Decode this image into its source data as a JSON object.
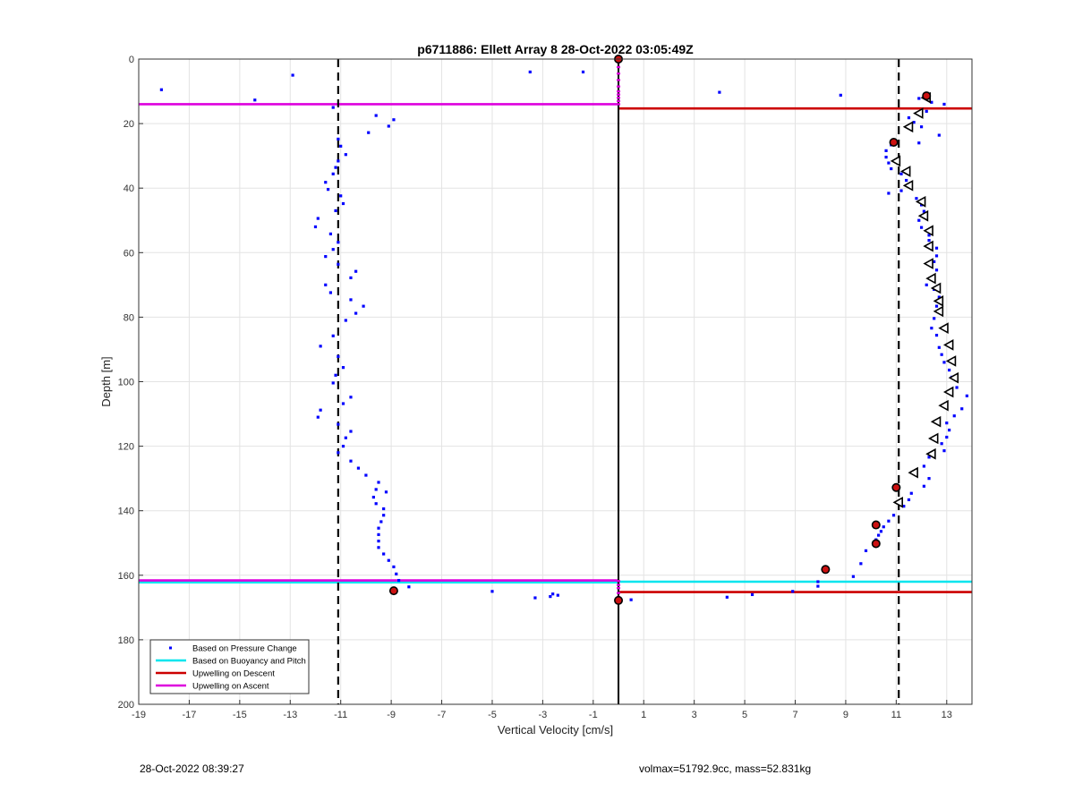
{
  "chart_data": {
    "type": "scatter",
    "title": "p6711886: Ellett Array 8 28-Oct-2022 03:05:49Z",
    "xlabel": "Vertical Velocity [cm/s]",
    "ylabel": "Depth [m]",
    "xlim": [
      -19,
      14
    ],
    "ylim": [
      0,
      200
    ],
    "y_reversed": true,
    "grid": true,
    "xticks": [
      -19,
      -17,
      -15,
      -13,
      -11,
      -9,
      -7,
      -5,
      -3,
      -1,
      1,
      3,
      5,
      7,
      9,
      11,
      13
    ],
    "yticks": [
      0,
      20,
      40,
      60,
      80,
      100,
      120,
      140,
      160,
      180,
      200
    ],
    "legend_location": "bottom-left",
    "legend": [
      {
        "label": "Based on Pressure Change",
        "marker": "dot",
        "color": "#0000ff"
      },
      {
        "label": "Based on Buoyancy and Pitch",
        "marker": "line",
        "color": "#00e5ee"
      },
      {
        "label": "Upwelling on Descent",
        "marker": "line",
        "color": "#cc0000"
      },
      {
        "label": "Upwelling on Ascent",
        "marker": "line",
        "color": "#dd00dd"
      }
    ],
    "vertical_lines": [
      {
        "x": -11.1,
        "style": "dashed",
        "color": "#000000"
      },
      {
        "x": 0,
        "style": "solid",
        "color": "#000000"
      },
      {
        "x": 11.1,
        "style": "dashed",
        "color": "#000000"
      }
    ],
    "horizontal_segments": [
      {
        "series": "Upwelling on Ascent",
        "y": 14.0,
        "x_from": -19,
        "x_to": 0,
        "color": "#dd00dd"
      },
      {
        "series": "Upwelling on Descent",
        "y": 15.3,
        "x_from": 0,
        "x_to": 14,
        "color": "#cc0000"
      },
      {
        "series": "Based on Buoyancy and Pitch",
        "y": 162.2,
        "x_from": -19,
        "x_to": 0,
        "color": "#00e5ee"
      },
      {
        "series": "Upwelling on Ascent",
        "y": 161.6,
        "x_from": -19,
        "x_to": 0,
        "color": "#dd00dd"
      },
      {
        "series": "Based on Buoyancy and Pitch",
        "y": 162.0,
        "x_from": 0,
        "x_to": 14,
        "color": "#00e5ee"
      },
      {
        "series": "Upwelling on Descent",
        "y": 165.2,
        "x_from": 0,
        "x_to": 14,
        "color": "#cc0000"
      }
    ],
    "pressure_change_points": [
      [
        -18.1,
        9.5
      ],
      [
        -14.4,
        12.7
      ],
      [
        -12.9,
        5.0
      ],
      [
        -3.5,
        4.0
      ],
      [
        -1.4,
        4.0
      ],
      [
        4.0,
        10.3
      ],
      [
        8.8,
        11.2
      ],
      [
        -11.3,
        15.0
      ],
      [
        -9.6,
        17.5
      ],
      [
        -8.9,
        18.8
      ],
      [
        -9.1,
        20.8
      ],
      [
        -9.9,
        22.8
      ],
      [
        -11.1,
        24.8
      ],
      [
        -11.0,
        27.0
      ],
      [
        -10.8,
        29.6
      ],
      [
        -11.1,
        31.6
      ],
      [
        -11.2,
        33.6
      ],
      [
        -11.3,
        35.6
      ],
      [
        -11.6,
        38.2
      ],
      [
        -11.5,
        40.4
      ],
      [
        -11.0,
        42.4
      ],
      [
        -10.9,
        44.8
      ],
      [
        -11.2,
        47.0
      ],
      [
        -11.9,
        49.4
      ],
      [
        -12.0,
        52.0
      ],
      [
        -11.4,
        54.2
      ],
      [
        -11.1,
        56.8
      ],
      [
        -11.3,
        59.0
      ],
      [
        -11.6,
        61.2
      ],
      [
        -11.1,
        63.6
      ],
      [
        -10.4,
        65.8
      ],
      [
        -10.6,
        67.8
      ],
      [
        -11.6,
        70.0
      ],
      [
        -11.4,
        72.4
      ],
      [
        -10.6,
        74.6
      ],
      [
        -10.1,
        76.6
      ],
      [
        -10.4,
        78.8
      ],
      [
        -10.8,
        81.0
      ],
      [
        -11.3,
        85.8
      ],
      [
        -11.8,
        89.0
      ],
      [
        -11.1,
        92.2
      ],
      [
        -10.9,
        95.6
      ],
      [
        -11.2,
        98.0
      ],
      [
        -11.3,
        100.4
      ],
      [
        -10.6,
        104.8
      ],
      [
        -10.9,
        106.8
      ],
      [
        -11.8,
        108.8
      ],
      [
        -11.9,
        111.0
      ],
      [
        -11.1,
        113.2
      ],
      [
        -10.6,
        115.4
      ],
      [
        -10.8,
        117.4
      ],
      [
        -10.9,
        120.0
      ],
      [
        -11.1,
        122.0
      ],
      [
        -10.6,
        124.6
      ],
      [
        -10.3,
        126.8
      ],
      [
        -10.0,
        129.0
      ],
      [
        -9.5,
        131.2
      ],
      [
        -9.6,
        133.4
      ],
      [
        -9.2,
        134.2
      ],
      [
        -9.7,
        135.8
      ],
      [
        -9.6,
        137.8
      ],
      [
        -9.3,
        139.4
      ],
      [
        -9.3,
        141.4
      ],
      [
        -9.4,
        143.4
      ],
      [
        -9.5,
        145.4
      ],
      [
        -9.5,
        147.4
      ],
      [
        -9.5,
        149.4
      ],
      [
        -9.5,
        151.4
      ],
      [
        -9.3,
        153.4
      ],
      [
        -9.1,
        155.4
      ],
      [
        -8.9,
        157.4
      ],
      [
        -8.8,
        159.6
      ],
      [
        -8.7,
        161.6
      ],
      [
        -8.3,
        163.6
      ],
      [
        -5.0,
        165.0
      ],
      [
        -3.3,
        167.0
      ],
      [
        -2.7,
        166.6
      ],
      [
        -2.6,
        165.8
      ],
      [
        -2.4,
        166.2
      ],
      [
        0.5,
        167.6
      ],
      [
        4.3,
        166.8
      ],
      [
        5.3,
        166.0
      ],
      [
        6.9,
        165.0
      ],
      [
        7.9,
        162.0
      ],
      [
        7.9,
        163.4
      ],
      [
        9.3,
        160.4
      ],
      [
        9.6,
        156.4
      ],
      [
        9.8,
        152.4
      ],
      [
        10.2,
        149.0
      ],
      [
        10.3,
        147.6
      ],
      [
        10.4,
        146.4
      ],
      [
        10.5,
        145.0
      ],
      [
        10.7,
        143.2
      ],
      [
        10.9,
        141.4
      ],
      [
        11.3,
        138.6
      ],
      [
        11.5,
        136.6
      ],
      [
        11.6,
        134.6
      ],
      [
        12.1,
        132.4
      ],
      [
        12.3,
        130.0
      ],
      [
        12.1,
        126.2
      ],
      [
        12.3,
        123.4
      ],
      [
        12.9,
        121.4
      ],
      [
        12.8,
        119.2
      ],
      [
        13.0,
        117.2
      ],
      [
        13.1,
        115.0
      ],
      [
        13.0,
        112.8
      ],
      [
        13.3,
        110.6
      ],
      [
        13.6,
        108.4
      ],
      [
        13.8,
        104.4
      ],
      [
        13.4,
        101.8
      ],
      [
        13.2,
        98.6
      ],
      [
        13.1,
        96.4
      ],
      [
        12.9,
        94.0
      ],
      [
        12.8,
        91.6
      ],
      [
        12.7,
        89.4
      ],
      [
        12.6,
        85.6
      ],
      [
        12.4,
        83.4
      ],
      [
        12.5,
        80.4
      ],
      [
        12.6,
        76.6
      ],
      [
        12.7,
        73.8
      ],
      [
        12.5,
        71.4
      ],
      [
        12.2,
        70.0
      ],
      [
        12.5,
        67.6
      ],
      [
        12.6,
        65.4
      ],
      [
        12.5,
        62.8
      ],
      [
        12.6,
        61.0
      ],
      [
        12.6,
        58.6
      ],
      [
        12.3,
        56.2
      ],
      [
        12.3,
        54.6
      ],
      [
        12.0,
        52.2
      ],
      [
        11.9,
        50.0
      ],
      [
        12.1,
        47.2
      ],
      [
        12.0,
        45.2
      ],
      [
        11.8,
        43.2
      ],
      [
        10.7,
        41.6
      ],
      [
        11.2,
        40.8
      ],
      [
        11.4,
        37.6
      ],
      [
        11.2,
        35.6
      ],
      [
        10.8,
        34.0
      ],
      [
        10.7,
        32.2
      ],
      [
        10.6,
        30.4
      ],
      [
        10.6,
        28.4
      ],
      [
        10.8,
        26.6
      ],
      [
        11.9,
        26.0
      ],
      [
        12.7,
        23.6
      ],
      [
        12.0,
        21.0
      ],
      [
        11.7,
        19.6
      ],
      [
        11.5,
        18.2
      ],
      [
        12.2,
        16.2
      ],
      [
        12.4,
        13.4
      ],
      [
        12.9,
        14.0
      ],
      [
        11.9,
        12.2
      ]
    ],
    "open_triangle_markers": [
      [
        12.2,
        12.0
      ],
      [
        11.9,
        16.8
      ],
      [
        11.5,
        21.0
      ],
      [
        11.0,
        31.6
      ],
      [
        11.4,
        34.8
      ],
      [
        11.5,
        39.2
      ],
      [
        12.0,
        44.2
      ],
      [
        12.1,
        48.6
      ],
      [
        12.3,
        53.2
      ],
      [
        12.3,
        58.0
      ],
      [
        12.3,
        63.4
      ],
      [
        12.4,
        68.0
      ],
      [
        12.6,
        71.0
      ],
      [
        12.7,
        75.0
      ],
      [
        12.7,
        78.2
      ],
      [
        12.9,
        83.4
      ],
      [
        13.1,
        88.6
      ],
      [
        13.2,
        93.6
      ],
      [
        13.3,
        98.8
      ],
      [
        13.1,
        103.2
      ],
      [
        12.9,
        107.4
      ],
      [
        12.6,
        112.4
      ],
      [
        12.5,
        117.6
      ],
      [
        12.4,
        122.4
      ],
      [
        11.7,
        128.2
      ],
      [
        11.1,
        137.4
      ]
    ],
    "filled_markers": [
      [
        0.0,
        0.0
      ],
      [
        12.2,
        11.4
      ],
      [
        10.9,
        25.8
      ],
      [
        11.0,
        132.8
      ],
      [
        10.2,
        144.4
      ],
      [
        10.2,
        150.2
      ],
      [
        8.2,
        158.2
      ],
      [
        -8.9,
        164.8
      ],
      [
        0.0,
        167.8
      ]
    ],
    "surface_marks_x0": [
      0.5,
      1.0,
      2.5,
      4.5,
      6.5,
      8.5,
      10.0,
      11.0,
      12.0,
      13.0,
      14.0,
      161.8,
      163.0,
      164.0,
      165.5,
      166.8
    ]
  },
  "footer": {
    "left": "28-Oct-2022 08:39:27",
    "right": "volmax=51792.9cc, mass=52.831kg"
  }
}
